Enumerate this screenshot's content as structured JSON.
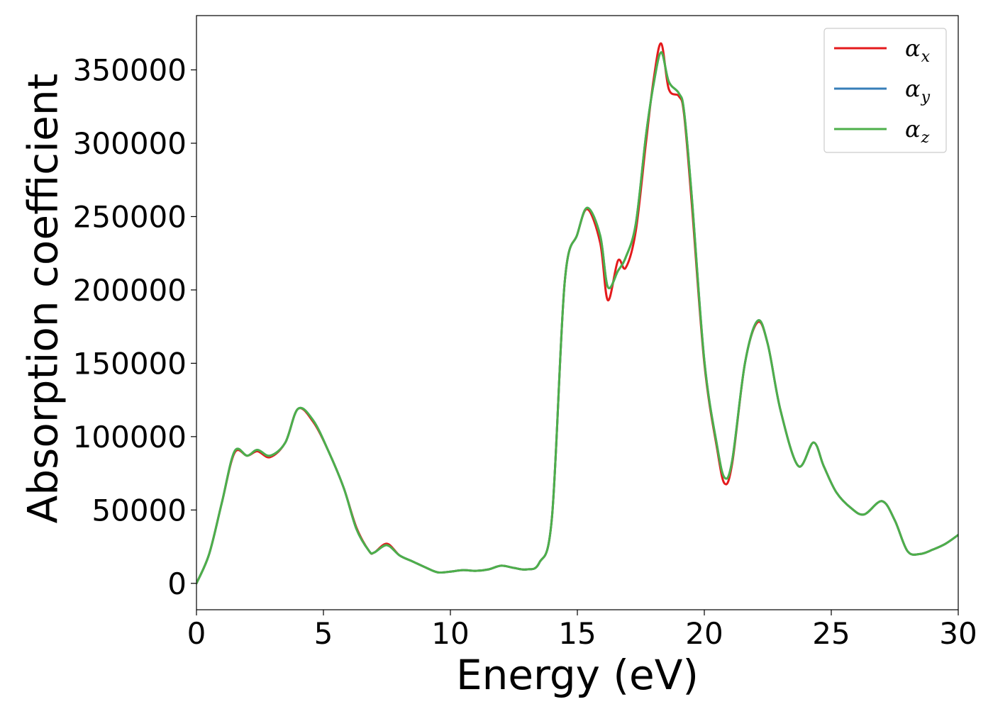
{
  "chart_data": {
    "type": "line",
    "title": "",
    "xlabel": "Energy (eV)",
    "ylabel": "Absorption coefficient",
    "xlim": [
      0,
      30
    ],
    "ylim": [
      -18000,
      387000
    ],
    "xticks": [
      0,
      5,
      10,
      15,
      20,
      25,
      30
    ],
    "yticks": [
      0,
      50000,
      100000,
      150000,
      200000,
      250000,
      300000,
      350000
    ],
    "grid": false,
    "legend_position": "top-right",
    "series": [
      {
        "name": "α_x",
        "legend_base": "α",
        "legend_sub": "x",
        "color": "#e41a1c",
        "x": [
          0,
          0.5,
          1.0,
          1.5,
          2.0,
          2.4,
          2.9,
          3.5,
          4.0,
          4.6,
          5.2,
          5.8,
          6.3,
          6.8,
          7.0,
          7.5,
          8.0,
          8.5,
          9.0,
          9.5,
          10.0,
          10.5,
          11.0,
          11.5,
          12.0,
          12.5,
          13.0,
          13.5,
          14.0,
          14.5,
          15.0,
          15.4,
          15.9,
          16.2,
          16.6,
          16.9,
          17.3,
          17.7,
          18.0,
          18.3,
          18.6,
          19.0,
          19.2,
          19.5,
          20.0,
          20.5,
          20.8,
          21.1,
          21.6,
          22.1,
          22.5,
          23.0,
          23.7,
          24.3,
          24.7,
          25.2,
          25.8,
          26.3,
          27.0,
          27.5,
          28.0,
          28.5,
          29.0,
          29.5,
          30.0
        ],
        "values": [
          0,
          20000,
          55000,
          89000,
          87000,
          90000,
          86000,
          96000,
          119000,
          110000,
          90000,
          65000,
          38000,
          22000,
          21000,
          27000,
          19000,
          15000,
          11000,
          7500,
          8000,
          9000,
          8500,
          9500,
          12000,
          10500,
          9500,
          14000,
          45000,
          205000,
          238000,
          255000,
          232000,
          193000,
          220000,
          215000,
          240000,
          300000,
          343000,
          368000,
          337000,
          332000,
          320000,
          260000,
          150000,
          92000,
          68000,
          82000,
          150000,
          178000,
          163000,
          118000,
          80000,
          96000,
          80000,
          62000,
          51000,
          47000,
          56000,
          43000,
          22000,
          20000,
          23000,
          27000,
          33000
        ]
      },
      {
        "name": "α_y",
        "legend_base": "α",
        "legend_sub": "y",
        "color": "#377eb8",
        "x": [
          0,
          0.5,
          1.0,
          1.5,
          2.0,
          2.4,
          2.9,
          3.5,
          4.0,
          4.6,
          5.2,
          5.8,
          6.3,
          6.8,
          7.0,
          7.5,
          8.0,
          8.5,
          9.0,
          9.5,
          10.0,
          10.5,
          11.0,
          11.5,
          12.0,
          12.5,
          13.0,
          13.5,
          14.0,
          14.5,
          15.0,
          15.4,
          15.9,
          16.2,
          16.6,
          16.9,
          17.3,
          17.7,
          18.0,
          18.3,
          18.6,
          19.0,
          19.2,
          19.5,
          20.0,
          20.5,
          20.8,
          21.1,
          21.6,
          22.1,
          22.5,
          23.0,
          23.7,
          24.3,
          24.7,
          25.2,
          25.8,
          26.3,
          27.0,
          27.5,
          28.0,
          28.5,
          29.0,
          29.5,
          30.0
        ],
        "values": [
          0,
          20000,
          55000,
          90000,
          87000,
          91000,
          87000,
          96000,
          119000,
          111000,
          90000,
          65000,
          37000,
          22000,
          21000,
          26000,
          19000,
          15000,
          11000,
          7500,
          8000,
          9000,
          8500,
          9500,
          12000,
          10500,
          9500,
          14000,
          45000,
          205000,
          238000,
          256000,
          237000,
          202000,
          213000,
          222000,
          245000,
          305000,
          340000,
          362000,
          342000,
          334000,
          322000,
          265000,
          152000,
          94000,
          72000,
          84000,
          150000,
          179000,
          163000,
          118000,
          80000,
          96000,
          80000,
          62000,
          51000,
          47000,
          56000,
          43000,
          22000,
          20000,
          23000,
          27000,
          33000
        ]
      },
      {
        "name": "α_z",
        "legend_base": "α",
        "legend_sub": "z",
        "color": "#4daf4a",
        "x": [
          0,
          0.5,
          1.0,
          1.5,
          2.0,
          2.4,
          2.9,
          3.5,
          4.0,
          4.6,
          5.2,
          5.8,
          6.3,
          6.8,
          7.0,
          7.5,
          8.0,
          8.5,
          9.0,
          9.5,
          10.0,
          10.5,
          11.0,
          11.5,
          12.0,
          12.5,
          13.0,
          13.5,
          14.0,
          14.5,
          15.0,
          15.4,
          15.9,
          16.2,
          16.6,
          16.9,
          17.3,
          17.7,
          18.0,
          18.3,
          18.6,
          19.0,
          19.2,
          19.5,
          20.0,
          20.5,
          20.8,
          21.1,
          21.6,
          22.1,
          22.5,
          23.0,
          23.7,
          24.3,
          24.7,
          25.2,
          25.8,
          26.3,
          27.0,
          27.5,
          28.0,
          28.5,
          29.0,
          29.5,
          30.0
        ],
        "values": [
          0,
          20000,
          55000,
          90000,
          87000,
          91000,
          87000,
          96000,
          119000,
          111000,
          90000,
          65000,
          37000,
          22000,
          21000,
          26000,
          19000,
          15000,
          11000,
          7500,
          8000,
          9000,
          8500,
          9500,
          12000,
          10500,
          9500,
          14000,
          45000,
          205000,
          238000,
          256000,
          237000,
          202000,
          213000,
          222000,
          245000,
          305000,
          340000,
          362000,
          342000,
          334000,
          322000,
          265000,
          152000,
          94000,
          72000,
          84000,
          150000,
          179000,
          163000,
          118000,
          80000,
          96000,
          80000,
          62000,
          51000,
          47000,
          56000,
          43000,
          22000,
          20000,
          23000,
          27000,
          33000
        ]
      }
    ]
  }
}
